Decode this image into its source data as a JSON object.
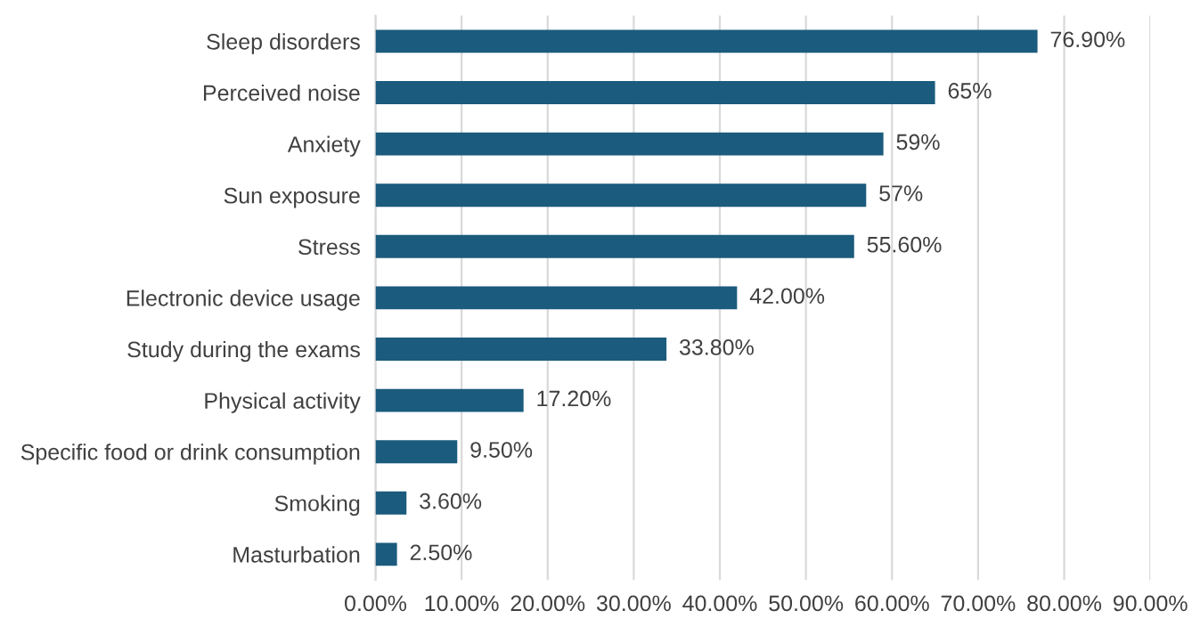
{
  "chart_data": {
    "type": "bar",
    "orientation": "horizontal",
    "categories": [
      "Sleep disorders",
      "Perceived noise",
      "Anxiety",
      "Sun exposure",
      "Stress",
      "Electronic device usage",
      "Study during the exams",
      "Physical activity",
      "Specific food or drink consumption",
      "Smoking",
      "Masturbation"
    ],
    "values": [
      76.9,
      65,
      59,
      57,
      55.6,
      42,
      33.8,
      17.2,
      9.5,
      3.6,
      2.5
    ],
    "value_labels": [
      "76.90%",
      "65%",
      "59%",
      "57%",
      "55.60%",
      "42.00%",
      "33.80%",
      "17.20%",
      "9.50%",
      "3.60%",
      "2.50%"
    ],
    "color": "#1b5b7d",
    "xlim": [
      0,
      90
    ],
    "xticks": [
      {
        "value": 0,
        "label": "0.00%"
      },
      {
        "value": 10,
        "label": "10.00%"
      },
      {
        "value": 20,
        "label": "20.00%"
      },
      {
        "value": 30,
        "label": "30.00%"
      },
      {
        "value": 40,
        "label": "40.00%"
      },
      {
        "value": 50,
        "label": "50.00%"
      },
      {
        "value": 60,
        "label": "60.00%"
      },
      {
        "value": 70,
        "label": "70.00%"
      },
      {
        "value": 80,
        "label": "80.00%"
      },
      {
        "value": 90,
        "label": "90.00%"
      }
    ],
    "grid": "x",
    "legend": false
  }
}
